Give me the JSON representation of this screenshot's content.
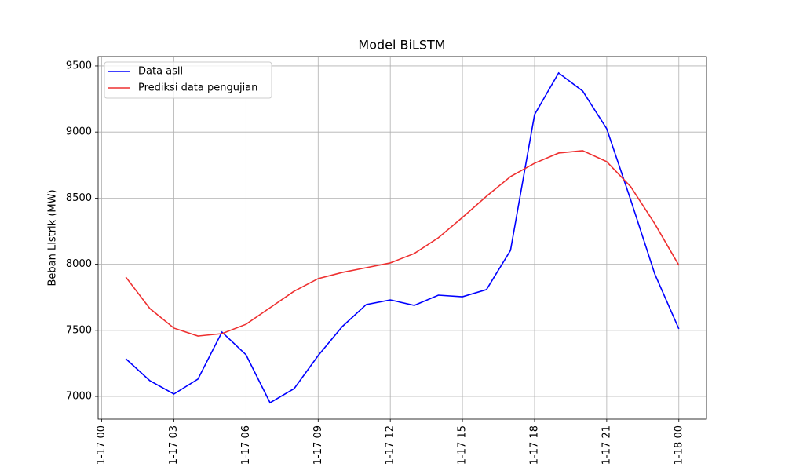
{
  "chart_data": {
    "type": "line",
    "title": "Model BiLSTM",
    "y_label": "Beban Listrik (MW)",
    "x": [
      1,
      2,
      3,
      4,
      5,
      6,
      7,
      8,
      9,
      10,
      11,
      12,
      13,
      14,
      15,
      16,
      17,
      18,
      19,
      20,
      21,
      22,
      23,
      24
    ],
    "series": [
      {
        "name": "Data asli",
        "color": "#0000ff",
        "values": [
          7285,
          7119,
          7018,
          7131,
          7487,
          7315,
          6952,
          7059,
          7309,
          7528,
          7695,
          7730,
          7689,
          7766,
          7754,
          7808,
          8105,
          9132,
          9447,
          9310,
          9025,
          8485,
          7926,
          7511
        ]
      },
      {
        "name": "Prediksi data pengujian",
        "color": "#ee3030",
        "values": [
          7903,
          7665,
          7517,
          7457,
          7475,
          7546,
          7671,
          7796,
          7891,
          7938,
          7974,
          8010,
          8081,
          8200,
          8354,
          8514,
          8663,
          8764,
          8841,
          8859,
          8776,
          8586,
          8306,
          7992
        ]
      }
    ],
    "xlim": [
      -0.15,
      25.15
    ],
    "xticks": [
      {
        "value": 0,
        "label": "1-17 00"
      },
      {
        "value": 3,
        "label": "1-17 03"
      },
      {
        "value": 6,
        "label": "1-17 06"
      },
      {
        "value": 9,
        "label": "1-17 09"
      },
      {
        "value": 12,
        "label": "1-17 12"
      },
      {
        "value": 15,
        "label": "1-17 15"
      },
      {
        "value": 18,
        "label": "1-17 18"
      },
      {
        "value": 21,
        "label": "1-17 21"
      },
      {
        "value": 24,
        "label": "1-18 00"
      }
    ],
    "ylim": [
      6828,
      9571
    ],
    "yticks": [
      7000,
      7500,
      8000,
      8500,
      9000,
      9500
    ],
    "grid": true,
    "legend": "upper-left"
  }
}
